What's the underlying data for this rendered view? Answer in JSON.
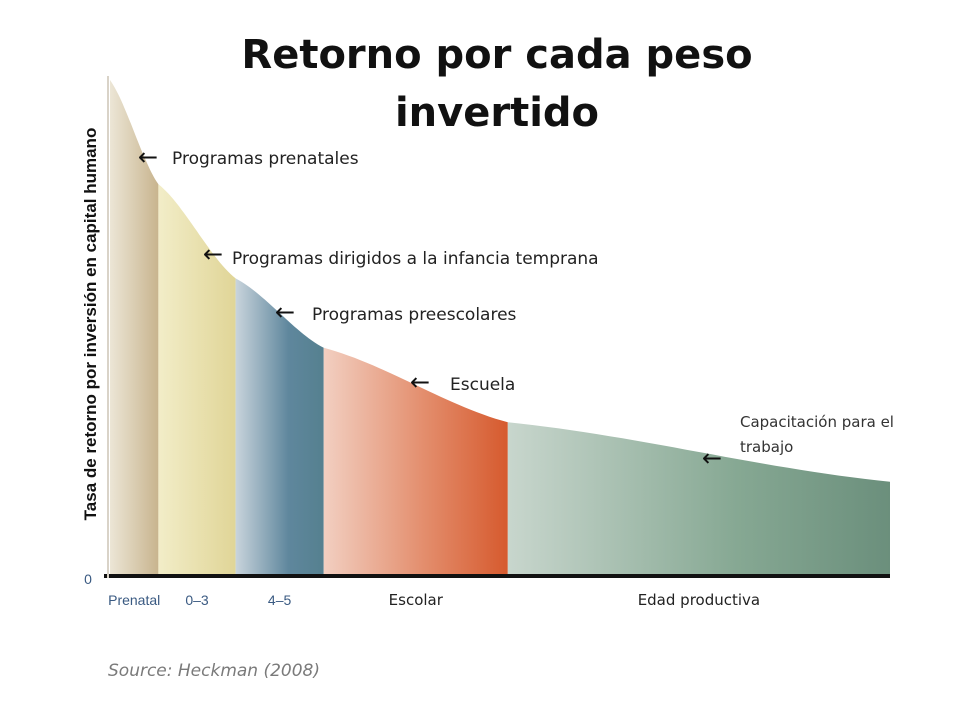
{
  "chart_data": {
    "type": "area",
    "title": "Retorno por cada peso invertido",
    "ylabel": "Tasa de retorno por inversión en capital humano",
    "y_tick_labels": [
      "0"
    ],
    "grid": false,
    "curve": "decreasing",
    "stages": [
      {
        "key": "prenatal",
        "tick_label": "Prenatal",
        "tick_style": "blue",
        "annotation": "Programas prenatales",
        "color": "#c8b48e",
        "x_start": 0,
        "x_end": 0.062,
        "y_start": 1.0,
        "y_end": 0.79
      },
      {
        "key": "infancia",
        "tick_label": "0–3",
        "tick_style": "blue",
        "annotation": "Programas dirigidos a la infancia temprana",
        "color": "#e6dca0",
        "x_start": 0.062,
        "x_end": 0.161,
        "y_start": 0.79,
        "y_end": 0.6
      },
      {
        "key": "preescolar",
        "tick_label": "4–5",
        "tick_style": "blue",
        "annotation": "Programas preescolares",
        "color": "#5a8299",
        "x_start": 0.161,
        "x_end": 0.274,
        "y_start": 0.6,
        "y_end": 0.46
      },
      {
        "key": "escolar",
        "tick_label": "Escolar",
        "tick_style": "dark",
        "annotation": "Escuela",
        "color": "#d8623a",
        "x_start": 0.274,
        "x_end": 0.51,
        "y_start": 0.46,
        "y_end": 0.31
      },
      {
        "key": "productiva",
        "tick_label": "Edad productiva",
        "tick_style": "dark",
        "annotation": "Capacitación para el trabajo",
        "color": "#6f9180",
        "x_start": 0.51,
        "x_end": 1.0,
        "y_start": 0.31,
        "y_end": 0.19
      }
    ],
    "source": "Source: Heckman (2008)"
  },
  "colors": {
    "prenatal": "#c8b48e",
    "infancia": "#e6dca0",
    "preescolar": "#5a8299",
    "escolar": "#d8623a",
    "productiva": "#6f9180",
    "tick_text": "#3a5a82"
  }
}
